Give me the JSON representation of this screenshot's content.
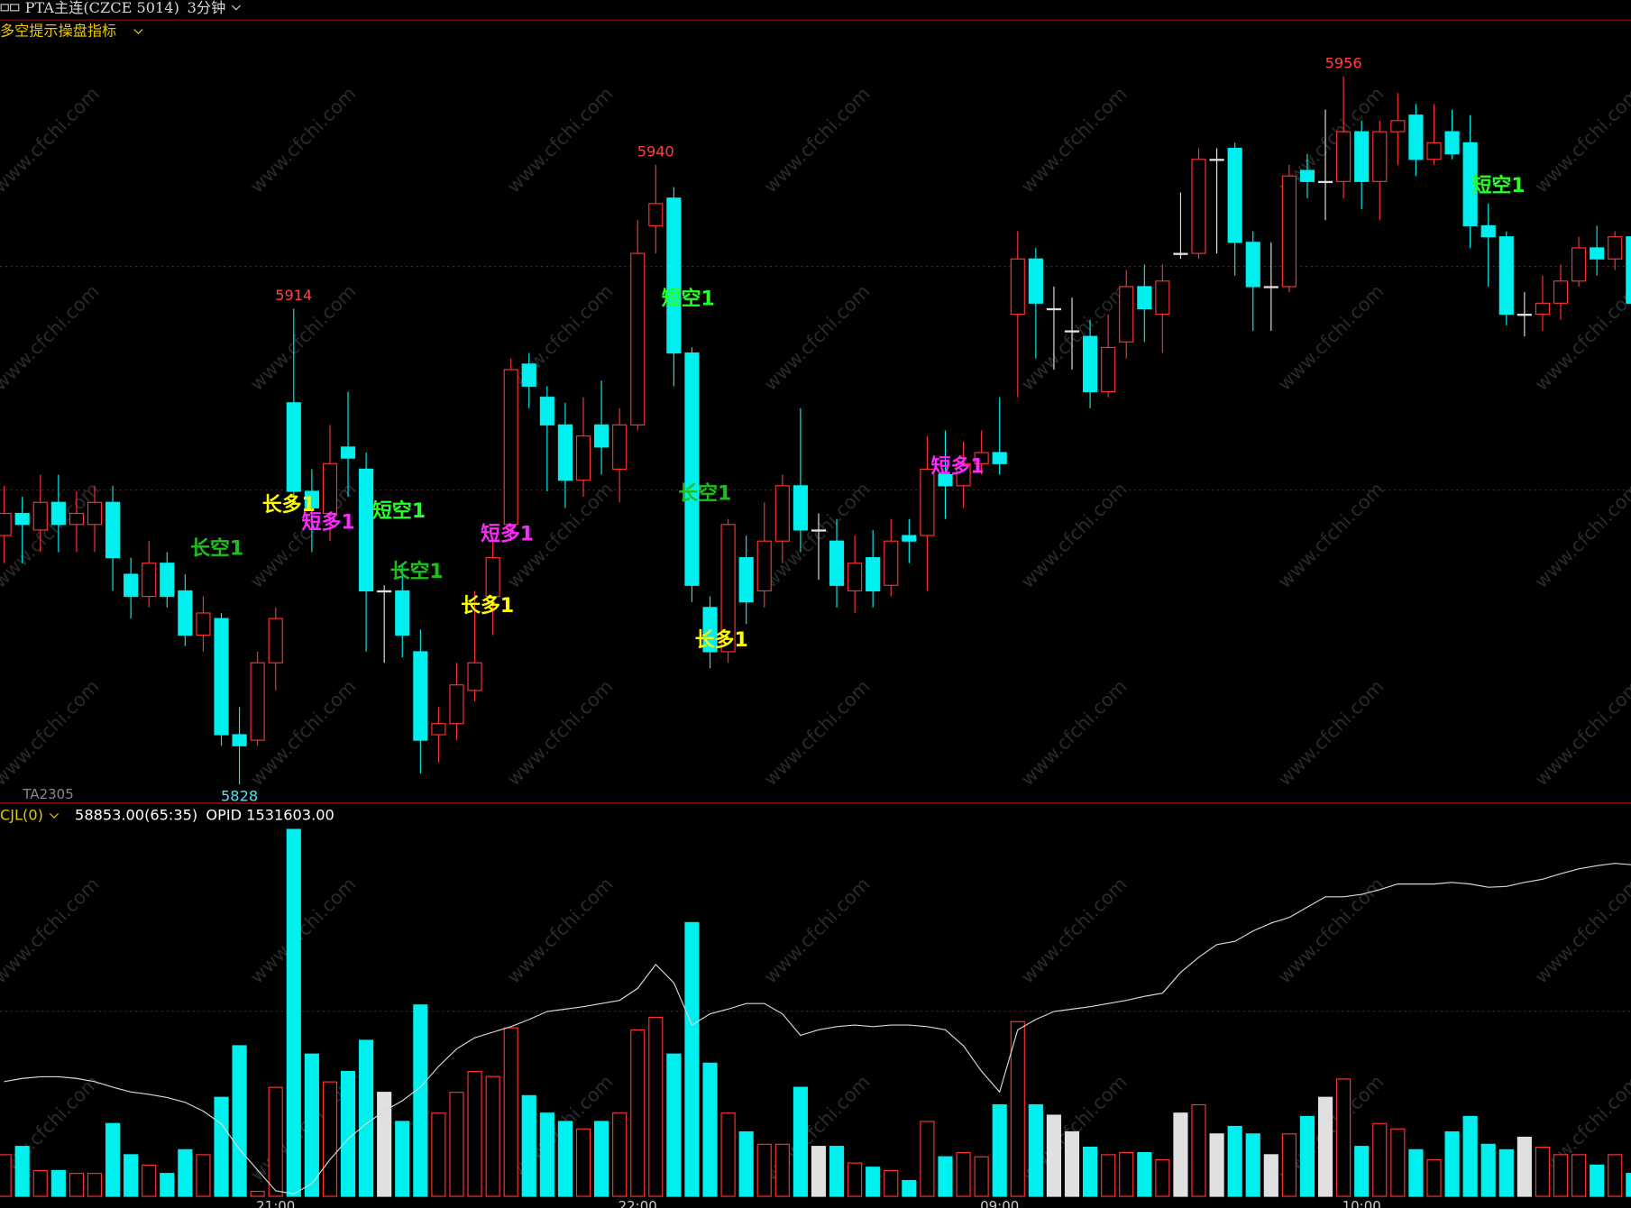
{
  "header": {
    "symbol": "PTA主连(CZCE 5014)",
    "period": "3分钟",
    "contract": "TA2305",
    "watermark": "www.cfchi.com"
  },
  "chart_data": [
    {
      "type": "candlestick",
      "title": "多空提示操盘指标",
      "categories": [
        null,
        null,
        null,
        null,
        null,
        null,
        null,
        null,
        null,
        null,
        null,
        null,
        null,
        null,
        null,
        "21:00",
        null,
        null,
        null,
        null,
        null,
        null,
        null,
        null,
        null,
        null,
        null,
        null,
        null,
        null,
        null,
        null,
        null,
        null,
        null,
        "22:00",
        null,
        null,
        null,
        null,
        null,
        null,
        null,
        null,
        null,
        null,
        null,
        null,
        null,
        null,
        null,
        null,
        null,
        null,
        null,
        "09:00",
        null,
        null,
        null,
        null,
        null,
        null,
        null,
        null,
        null,
        null,
        null,
        null,
        null,
        null,
        null,
        null,
        null,
        null,
        null,
        "10:00",
        null,
        null,
        null,
        null,
        null,
        null,
        null,
        null,
        null,
        null,
        null,
        null,
        null,
        null,
        null
      ],
      "open": [
        5873,
        5877,
        5874,
        5879,
        5875,
        5875,
        5879,
        5866,
        5862,
        5868,
        5863,
        5855,
        5858,
        5837,
        5836,
        5850,
        5897,
        5881,
        5877,
        5889,
        5885,
        5863,
        5863,
        5852,
        5837,
        5839,
        5845,
        5862,
        5875,
        5904,
        5898,
        5893,
        5883,
        5893,
        5885,
        5893,
        5929,
        5934,
        5906,
        5860,
        5852,
        5869,
        5863,
        5872,
        5882,
        5874,
        5872,
        5863,
        5869,
        5864,
        5873,
        5873,
        5884,
        5882,
        5886,
        5888,
        5913,
        5923,
        5914,
        5910,
        5909,
        5899,
        5908,
        5918,
        5913,
        5924,
        5924,
        5941,
        5943,
        5926,
        5918,
        5918,
        5939,
        5937,
        5937,
        5946,
        5937,
        5946,
        5949,
        5941,
        5946,
        5944,
        5929,
        5927,
        5913,
        5913,
        5915,
        5919,
        5925,
        5923,
        5927
      ],
      "high": [
        5882,
        5880,
        5884,
        5884,
        5881,
        5882,
        5882,
        5869,
        5872,
        5870,
        5866,
        5862,
        5859,
        5842,
        5852,
        5860,
        5914,
        5885,
        5893,
        5899,
        5888,
        5864,
        5868,
        5856,
        5842,
        5850,
        5863,
        5872,
        5905,
        5906,
        5900,
        5897,
        5898,
        5901,
        5896,
        5930,
        5940,
        5936,
        5907,
        5862,
        5876,
        5873,
        5879,
        5884,
        5896,
        5877,
        5876,
        5873,
        5874,
        5876,
        5876,
        5891,
        5892,
        5890,
        5892,
        5898,
        5928,
        5925,
        5918,
        5916,
        5912,
        5913,
        5921,
        5922,
        5922,
        5935,
        5943,
        5943,
        5944,
        5928,
        5926,
        5940,
        5942,
        5950,
        5956,
        5948,
        5948,
        5953,
        5951,
        5951,
        5950,
        5949,
        5933,
        5928,
        5917,
        5920,
        5922,
        5927,
        5929,
        5928,
        5928
      ],
      "low": [
        5868,
        5868,
        5870,
        5870,
        5870,
        5870,
        5863,
        5858,
        5860,
        5860,
        5853,
        5852,
        5835,
        5828,
        5835,
        5845,
        5880,
        5870,
        5872,
        5880,
        5852,
        5850,
        5851,
        5830,
        5832,
        5836,
        5843,
        5855,
        5872,
        5896,
        5881,
        5878,
        5880,
        5884,
        5879,
        5892,
        5924,
        5900,
        5861,
        5849,
        5850,
        5857,
        5860,
        5868,
        5870,
        5865,
        5860,
        5859,
        5860,
        5862,
        5868,
        5863,
        5876,
        5878,
        5884,
        5884,
        5898,
        5905,
        5903,
        5903,
        5896,
        5898,
        5905,
        5908,
        5906,
        5923,
        5923,
        5924,
        5920,
        5910,
        5910,
        5917,
        5934,
        5930,
        5934,
        5932,
        5930,
        5940,
        5938,
        5940,
        5941,
        5925,
        5918,
        5911,
        5909,
        5910,
        5912,
        5918,
        5920,
        5921,
        5912
      ],
      "close": [
        5877,
        5875,
        5879,
        5875,
        5877,
        5879,
        5869,
        5862,
        5868,
        5862,
        5855,
        5859,
        5837,
        5835,
        5850,
        5858,
        5881,
        5878,
        5886,
        5887,
        5863,
        5863,
        5855,
        5836,
        5839,
        5846,
        5850,
        5869,
        5903,
        5900,
        5893,
        5883,
        5891,
        5889,
        5893,
        5924,
        5933,
        5906,
        5864,
        5852,
        5875,
        5861,
        5872,
        5882,
        5874,
        5874,
        5864,
        5868,
        5863,
        5872,
        5872,
        5885,
        5882,
        5886,
        5888,
        5886,
        5923,
        5915,
        5914,
        5910,
        5899,
        5907,
        5918,
        5914,
        5919,
        5924,
        5941,
        5941,
        5926,
        5918,
        5918,
        5938,
        5937,
        5937,
        5946,
        5937,
        5946,
        5948,
        5941,
        5944,
        5942,
        5929,
        5927,
        5913,
        5913,
        5915,
        5919,
        5925,
        5923,
        5927,
        5915
      ],
      "ylim": [
        5825,
        5966
      ],
      "up_color": "#ff3232",
      "down_color": "#00f0f0",
      "flat_color": "#e0e0e0",
      "high_labels": [
        5914,
        5940,
        5956
      ],
      "high_label_color": "#ff4040",
      "low_labels": [
        5828
      ],
      "low_label_color": "#40e8ff",
      "annotations": [
        {
          "text": "长空1",
          "color": "#19c319"
        },
        {
          "text": "长多1",
          "color": "#ffff00"
        },
        {
          "text": "短多1",
          "color": "#ff28ff"
        },
        {
          "text": "短空1",
          "color": "#28ff28"
        },
        {
          "text": "长空1",
          "color": "#19c319"
        },
        {
          "text": "短多1",
          "color": "#ff28ff"
        },
        {
          "text": "长多1",
          "color": "#ffff00"
        },
        {
          "text": "短空1",
          "color": "#28ff28"
        },
        {
          "text": "长空1",
          "color": "#19c319"
        },
        {
          "text": "长多1",
          "color": "#ffff00"
        },
        {
          "text": "短多1",
          "color": "#ff28ff"
        },
        {
          "text": "短空1",
          "color": "#28ff28"
        }
      ]
    },
    {
      "type": "bar",
      "title": "CJL(0)",
      "readouts": [
        "58853.00(65:35)",
        "OPID 1531603.00"
      ],
      "ylim": [
        0,
        900
      ],
      "y2lim": [
        1490000,
        1537000
      ],
      "series": [
        {
          "values": [
            100,
            120,
            62,
            62,
            55,
            55,
            175,
            100,
            75,
            55,
            112,
            100,
            238,
            362,
            12,
            262,
            882,
            342,
            275,
            300,
            375,
            250,
            180,
            460,
            200,
            250,
            300,
            288,
            405,
            242,
            200,
            180,
            162,
            180,
            200,
            400,
            430,
            342,
            658,
            320,
            200,
            155,
            125,
            125,
            262,
            120,
            120,
            80,
            70,
            62,
            38,
            180,
            95,
            105,
            95,
            220,
            420,
            220,
            195,
            155,
            118,
            100,
            105,
            105,
            88,
            200,
            220,
            150,
            168,
            150,
            100,
            150,
            192,
            238,
            282,
            120,
            175,
            162,
            112,
            88,
            155,
            192,
            125,
            112,
            142,
            118,
            100,
            100,
            75,
            100,
            55
          ]
        },
        {
          "axis": "y2",
          "color": "#d8d8d8",
          "values": [
            1504400,
            1504800,
            1505000,
            1505000,
            1504800,
            1504400,
            1503700,
            1503100,
            1502800,
            1502400,
            1501800,
            1500700,
            1499100,
            1495900,
            1493300,
            1490700,
            1490300,
            1491600,
            1494600,
            1497200,
            1499100,
            1500700,
            1502000,
            1503700,
            1506300,
            1508500,
            1509900,
            1510600,
            1511300,
            1512200,
            1513200,
            1513500,
            1513800,
            1514200,
            1514600,
            1516100,
            1519100,
            1516800,
            1511500,
            1512900,
            1513500,
            1514200,
            1514200,
            1512900,
            1510200,
            1510900,
            1511300,
            1511500,
            1511300,
            1511500,
            1511500,
            1511300,
            1510900,
            1508900,
            1505700,
            1503100,
            1510900,
            1512200,
            1513200,
            1513500,
            1513800,
            1514200,
            1514600,
            1515100,
            1515500,
            1518100,
            1520000,
            1521600,
            1522000,
            1523300,
            1524300,
            1525000,
            1526300,
            1527600,
            1527600,
            1527900,
            1528500,
            1529200,
            1529200,
            1529200,
            1529400,
            1529200,
            1528800,
            1528900,
            1529400,
            1529800,
            1530500,
            1531100,
            1531500,
            1531800,
            1531603
          ]
        }
      ]
    }
  ]
}
